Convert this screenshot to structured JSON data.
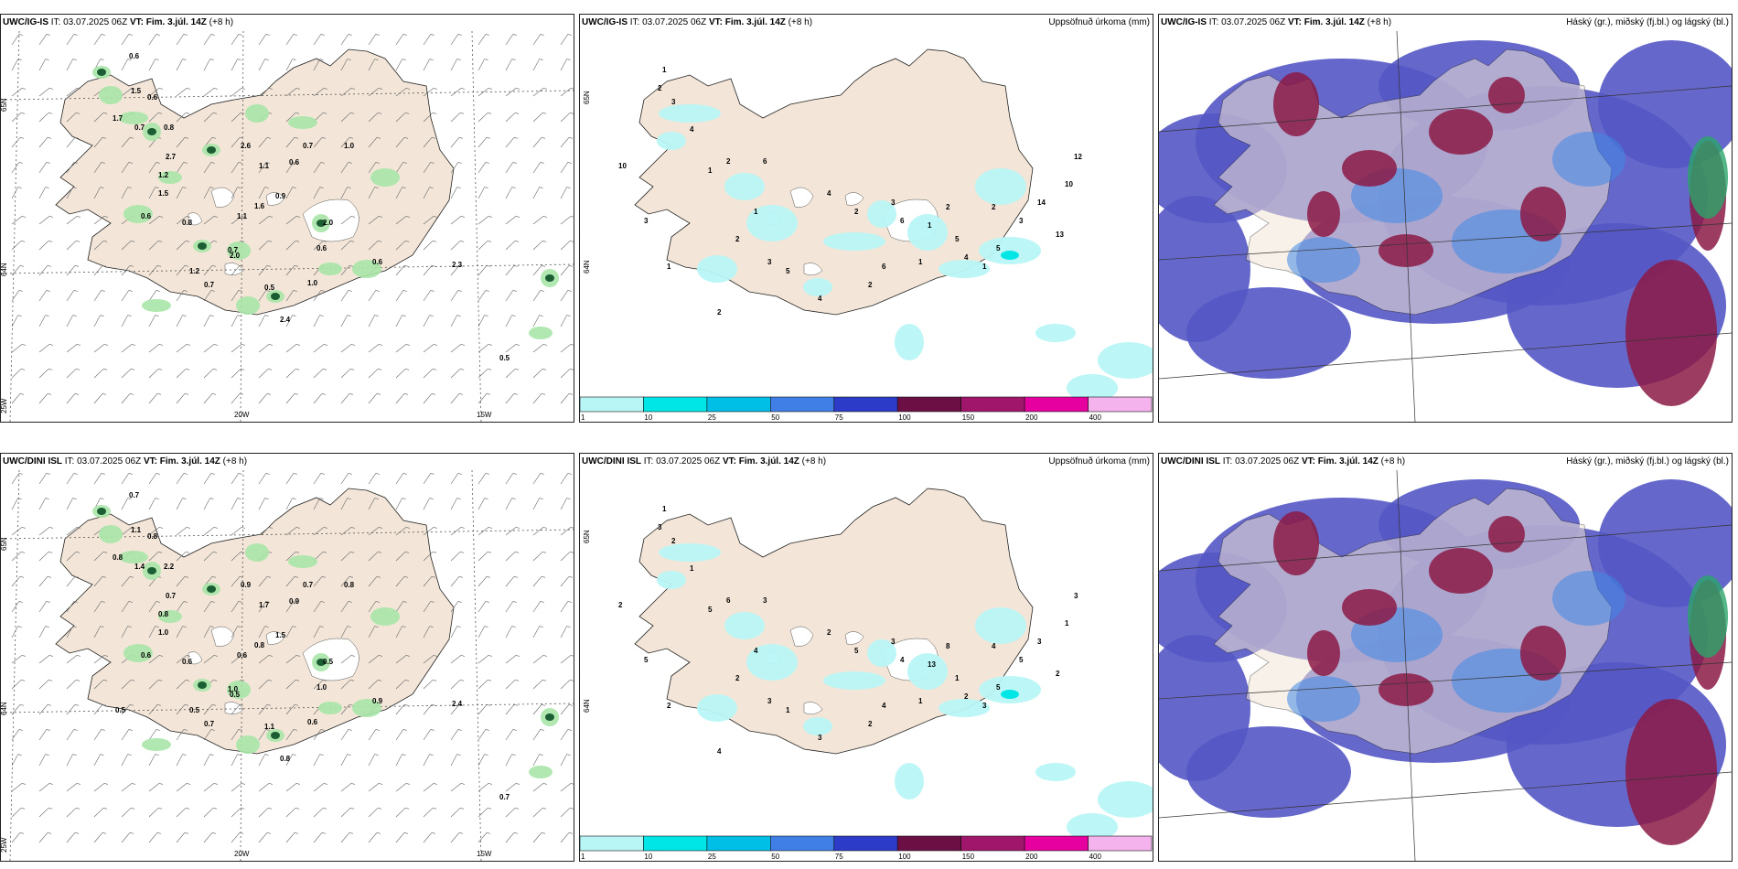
{
  "panels": [
    {
      "model": "UWC/IG-IS",
      "it_label": "IT:",
      "it_value": "03.07.2025 06Z",
      "vt_label": "VT:",
      "vt_value": "Fim. 3.júl. 14Z",
      "offset": "(+8 h)",
      "right_title": "",
      "kind": "precip-wind",
      "lat_labels": [
        "65N",
        "64N"
      ],
      "lon_labels": [
        "25W",
        "20W",
        "15W"
      ],
      "values": [
        "0.6",
        "1.5",
        "0.6",
        "1.7",
        "0.7",
        "0.8",
        "2.7",
        "1.2",
        "1.5",
        "0.6",
        "2.6",
        "1.1",
        "0.6",
        "0.7",
        "1.0",
        "0.9",
        "1.1",
        "1.2",
        "2.0",
        "0.6",
        "1.0",
        "2.4",
        "0.5",
        "0.7",
        "0.8",
        "0.7",
        "2.0",
        "1.6",
        "0.6",
        "2.3",
        "0.5"
      ]
    },
    {
      "model": "UWC/IG-IS",
      "it_label": "IT:",
      "it_value": "03.07.2025 06Z",
      "vt_label": "VT:",
      "vt_value": "Fim. 3.júl. 14Z",
      "offset": "(+8 h)",
      "right_title": "Uppsöfnuð úrkoma (mm)",
      "kind": "accum",
      "lat_labels": [
        "65N",
        "64N"
      ],
      "values": [
        "10",
        "1",
        "2",
        "3",
        "4",
        "2",
        "1",
        "6",
        "1",
        "2",
        "3",
        "5",
        "4",
        "2",
        "3",
        "6",
        "1",
        "2",
        "5",
        "4",
        "1",
        "2",
        "3",
        "14",
        "13",
        "10",
        "12",
        "5",
        "6",
        "1",
        "2",
        "4",
        "2",
        "3",
        "1"
      ],
      "colorbar": [
        "1",
        "10",
        "25",
        "50",
        "75",
        "100",
        "150",
        "200",
        "400"
      ],
      "colorbar_colors": [
        "#b8f6f6",
        "#00e6e6",
        "#00bfe6",
        "#3f7fe6",
        "#2d3cc8",
        "#6b0f45",
        "#a0166a",
        "#e600a0",
        "#f5b3ee"
      ]
    },
    {
      "model": "UWC/IG-IS",
      "it_label": "IT:",
      "it_value": "03.07.2025 06Z",
      "vt_label": "VT:",
      "vt_value": "Fim. 3.júl. 14Z",
      "offset": "(+8 h)",
      "right_title": "Háský (gr.), miðský (fj.bl.) og lágský (bl.)",
      "kind": "clouds"
    },
    {
      "model": "UWC/DINI ISL",
      "it_label": "IT:",
      "it_value": "03.07.2025 06Z",
      "vt_label": "VT:",
      "vt_value": "Fim. 3.júl. 14Z",
      "offset": "(+8 h)",
      "right_title": "",
      "kind": "precip-wind",
      "lat_labels": [
        "65N",
        "64N"
      ],
      "lon_labels": [
        "25W",
        "20W",
        "15W"
      ],
      "values": [
        "0.7",
        "1.1",
        "0.8",
        "0.8",
        "1.4",
        "2.2",
        "0.7",
        "0.8",
        "1.0",
        "0.6",
        "0.9",
        "1.7",
        "0.9",
        "0.7",
        "0.8",
        "1.5",
        "0.6",
        "0.5",
        "0.5",
        "1.0",
        "0.6",
        "0.8",
        "1.1",
        "0.7",
        "0.6",
        "1.0",
        "0.5",
        "0.8",
        "0.9",
        "2.4",
        "0.7",
        "0.5"
      ]
    },
    {
      "model": "UWC/DINI ISL",
      "it_label": "IT:",
      "it_value": "03.07.2025 06Z",
      "vt_label": "VT:",
      "vt_value": "Fim. 3.júl. 14Z",
      "offset": "(+8 h)",
      "right_title": "Uppsöfnuð úrkoma (mm)",
      "kind": "accum",
      "lat_labels": [
        "65N",
        "64N"
      ],
      "values": [
        "2",
        "1",
        "3",
        "2",
        "1",
        "6",
        "5",
        "3",
        "4",
        "2",
        "3",
        "1",
        "2",
        "5",
        "3",
        "4",
        "13",
        "8",
        "1",
        "2",
        "3",
        "4",
        "5",
        "3",
        "2",
        "1",
        "3",
        "5",
        "4",
        "1",
        "2",
        "3",
        "4",
        "5",
        "2"
      ],
      "colorbar": [
        "1",
        "10",
        "25",
        "50",
        "75",
        "100",
        "150",
        "200",
        "400"
      ],
      "colorbar_colors": [
        "#b8f6f6",
        "#00e6e6",
        "#00bfe6",
        "#3f7fe6",
        "#2d3cc8",
        "#6b0f45",
        "#a0166a",
        "#e600a0",
        "#f5b3ee"
      ]
    },
    {
      "model": "UWC/DINI ISL",
      "it_label": "IT:",
      "it_value": "03.07.2025 06Z",
      "vt_label": "VT:",
      "vt_value": "Fim. 3.júl. 14Z",
      "offset": "(+8 h)",
      "right_title": "Háský (gr.), miðský (fj.bl.) og lágský (bl.)",
      "kind": "clouds"
    }
  ],
  "colors": {
    "land": "#f3e6d8",
    "precip_light": "#a8e6a8",
    "precip_dark": "#1b5e33",
    "low_cloud": "#5457c4",
    "mid_cloud": "#3f88e6",
    "high_cloud": "#8b1a45"
  }
}
